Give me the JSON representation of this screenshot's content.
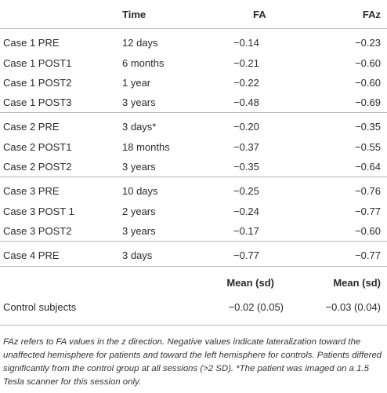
{
  "headers": {
    "label": "",
    "time": "Time",
    "fa": "FA",
    "faz": "FAz"
  },
  "rows": [
    {
      "label": "Case 1 PRE",
      "time": "12 days",
      "fa": "−0.14",
      "faz": "−0.23"
    },
    {
      "label": "Case 1 POST1",
      "time": "6 months",
      "fa": "−0.21",
      "faz": "−0.60"
    },
    {
      "label": "Case 1 POST2",
      "time": "1 year",
      "fa": "−0.22",
      "faz": "−0.60"
    },
    {
      "label": "Case 1 POST3",
      "time": "3 years",
      "fa": "−0.48",
      "faz": "−0.69"
    },
    {
      "label": "Case 2 PRE",
      "time": "3 days*",
      "fa": "−0.20",
      "faz": "−0.35"
    },
    {
      "label": "Case 2 POST1",
      "time": "18 months",
      "fa": "−0.37",
      "faz": "−0.55"
    },
    {
      "label": "Case 2 POST2",
      "time": "3 years",
      "fa": "−0.35",
      "faz": "−0.64"
    },
    {
      "label": "Case 3 PRE",
      "time": "10 days",
      "fa": "−0.25",
      "faz": "−0.76"
    },
    {
      "label": "Case 3 POST 1",
      "time": "2 years",
      "fa": "−0.24",
      "faz": "−0.77"
    },
    {
      "label": "Case 3 POST2",
      "time": "3 years",
      "fa": "−0.17",
      "faz": "−0.60"
    },
    {
      "label": "Case 4 PRE",
      "time": "3 days",
      "fa": "−0.77",
      "faz": "−0.77"
    }
  ],
  "control": {
    "mean_header_fa": "Mean (sd)",
    "mean_header_faz": "Mean (sd)",
    "label": "Control subjects",
    "fa": "−0.02 (0.05)",
    "faz": "−0.03 (0.04)"
  },
  "footnote": "FAz refers to FA values in the z direction. Negative values indicate lateralization toward the unaffected hemisphere for patients and toward the left hemisphere for controls. Patients differed significantly from the control group at all sessions (>2 SD). *The patient was imaged on a 1.5 Tesla scanner for this session only."
}
